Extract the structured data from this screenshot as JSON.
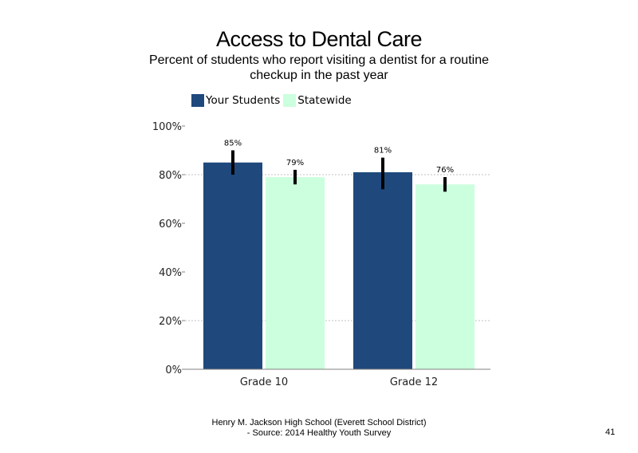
{
  "chart_data": {
    "type": "bar",
    "title": "Access to Dental Care",
    "subtitle": "Percent of students who report visiting a dentist for a routine checkup in the past year",
    "categories": [
      "Grade 10",
      "Grade 12"
    ],
    "series": [
      {
        "name": "Your Students",
        "values": [
          85,
          81
        ],
        "labels": [
          "85%",
          "81%"
        ],
        "error_low": [
          80,
          74
        ],
        "error_high": [
          90,
          87
        ],
        "color": "#1f497d"
      },
      {
        "name": "Statewide",
        "values": [
          79,
          76
        ],
        "labels": [
          "79%",
          "76%"
        ],
        "error_low": [
          76,
          73
        ],
        "error_high": [
          82,
          79
        ],
        "color": "#ccffdd"
      }
    ],
    "ylim": [
      0,
      100
    ],
    "yticks": [
      "0%",
      "20%",
      "40%",
      "60%",
      "80%",
      "100%"
    ],
    "ytick_values": [
      0,
      20,
      40,
      60,
      80,
      100
    ],
    "gridlines": "dotted at 20% and 80%",
    "legend": "top-left"
  },
  "footer": {
    "line1": "Henry M. Jackson High School (Everett School District)",
    "line2": "- Source: 2014 Healthy Youth Survey"
  },
  "page_number": "41"
}
